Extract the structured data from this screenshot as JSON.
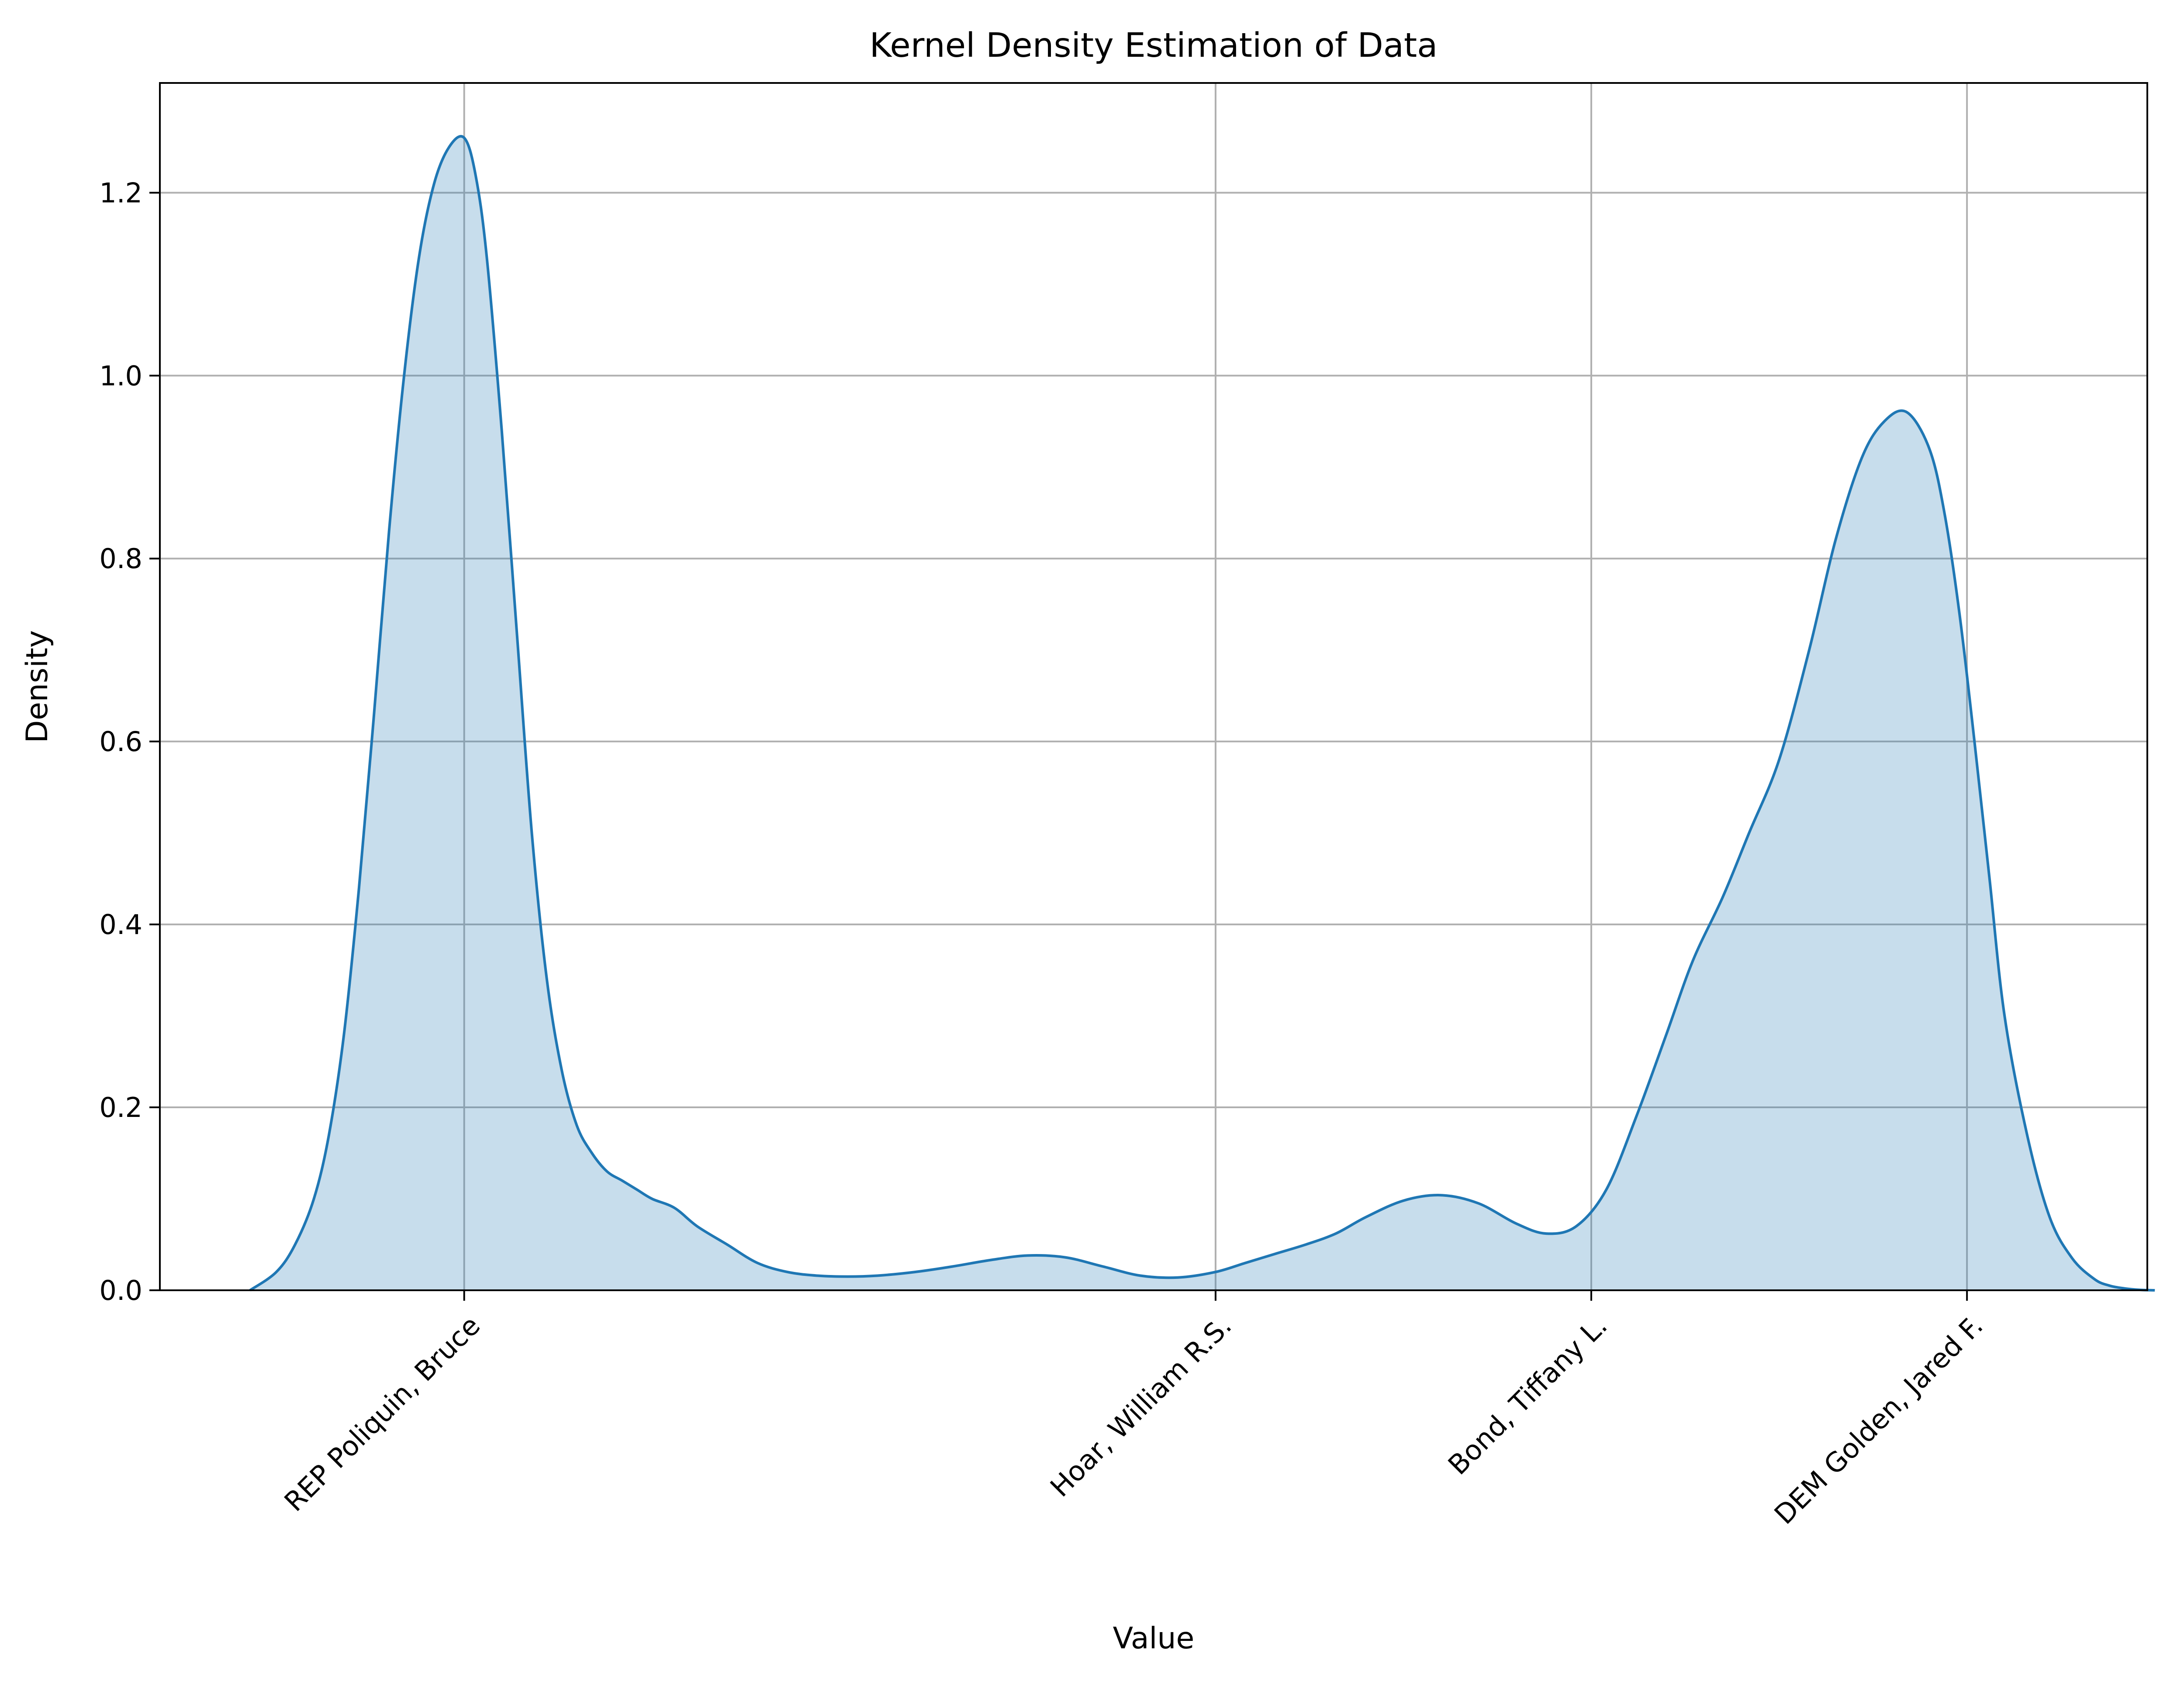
{
  "chart_data": {
    "type": "area",
    "title": "Kernel Density Estimation of Data",
    "xlabel": "Value",
    "ylabel": "Density",
    "xlim": [
      -0.81,
      4.48
    ],
    "ylim": [
      0,
      1.32
    ],
    "x_categories": [
      {
        "position": 0,
        "label": "REP Poliquin, Bruce"
      },
      {
        "position": 2,
        "label": "Hoar, William R.S."
      },
      {
        "position": 3,
        "label": "Bond, Tiffany L."
      },
      {
        "position": 4,
        "label": "DEM Golden, Jared F."
      }
    ],
    "y_ticks": [
      0.0,
      0.2,
      0.4,
      0.6,
      0.8,
      1.0,
      1.2
    ],
    "y_tick_labels": [
      "0.0",
      "0.2",
      "0.4",
      "0.6",
      "0.8",
      "1.0",
      "1.2"
    ],
    "grid": true,
    "legend": "none",
    "colors": {
      "line": "#1f77b4",
      "fill": "#1f77b4",
      "fill_opacity": 0.25
    },
    "series": [
      {
        "x": [
          -0.57,
          -0.5,
          -0.45,
          -0.4,
          -0.36,
          -0.32,
          -0.28,
          -0.24,
          -0.2,
          -0.16,
          -0.12,
          -0.08,
          -0.04,
          0.0,
          0.03,
          0.06,
          0.1,
          0.14,
          0.18,
          0.22,
          0.26,
          0.3,
          0.34,
          0.38,
          0.42,
          0.46,
          0.5,
          0.56,
          0.62,
          0.7,
          0.78,
          0.86,
          0.94,
          1.02,
          1.1,
          1.2,
          1.3,
          1.4,
          1.5,
          1.6,
          1.7,
          1.8,
          1.9,
          2.0,
          2.08,
          2.16,
          2.24,
          2.32,
          2.4,
          2.5,
          2.6,
          2.7,
          2.8,
          2.88,
          2.96,
          3.04,
          3.12,
          3.2,
          3.27,
          3.35,
          3.42,
          3.5,
          3.58,
          3.65,
          3.72,
          3.78,
          3.84,
          3.9,
          3.94,
          3.98,
          4.02,
          4.06,
          4.1,
          4.16,
          4.22,
          4.28,
          4.34,
          4.38,
          4.42,
          4.46,
          4.5
        ],
        "y": [
          0.0,
          0.02,
          0.05,
          0.1,
          0.17,
          0.28,
          0.44,
          0.63,
          0.83,
          1.0,
          1.13,
          1.21,
          1.25,
          1.26,
          1.22,
          1.13,
          0.94,
          0.72,
          0.5,
          0.34,
          0.24,
          0.18,
          0.15,
          0.13,
          0.12,
          0.11,
          0.1,
          0.09,
          0.07,
          0.05,
          0.03,
          0.02,
          0.016,
          0.015,
          0.016,
          0.02,
          0.026,
          0.033,
          0.038,
          0.036,
          0.026,
          0.016,
          0.014,
          0.02,
          0.03,
          0.04,
          0.05,
          0.062,
          0.08,
          0.098,
          0.104,
          0.095,
          0.073,
          0.062,
          0.07,
          0.11,
          0.19,
          0.28,
          0.36,
          0.43,
          0.5,
          0.58,
          0.7,
          0.82,
          0.91,
          0.95,
          0.96,
          0.92,
          0.85,
          0.74,
          0.6,
          0.45,
          0.3,
          0.17,
          0.08,
          0.035,
          0.012,
          0.005,
          0.002,
          0.0005,
          0.0
        ]
      }
    ]
  }
}
